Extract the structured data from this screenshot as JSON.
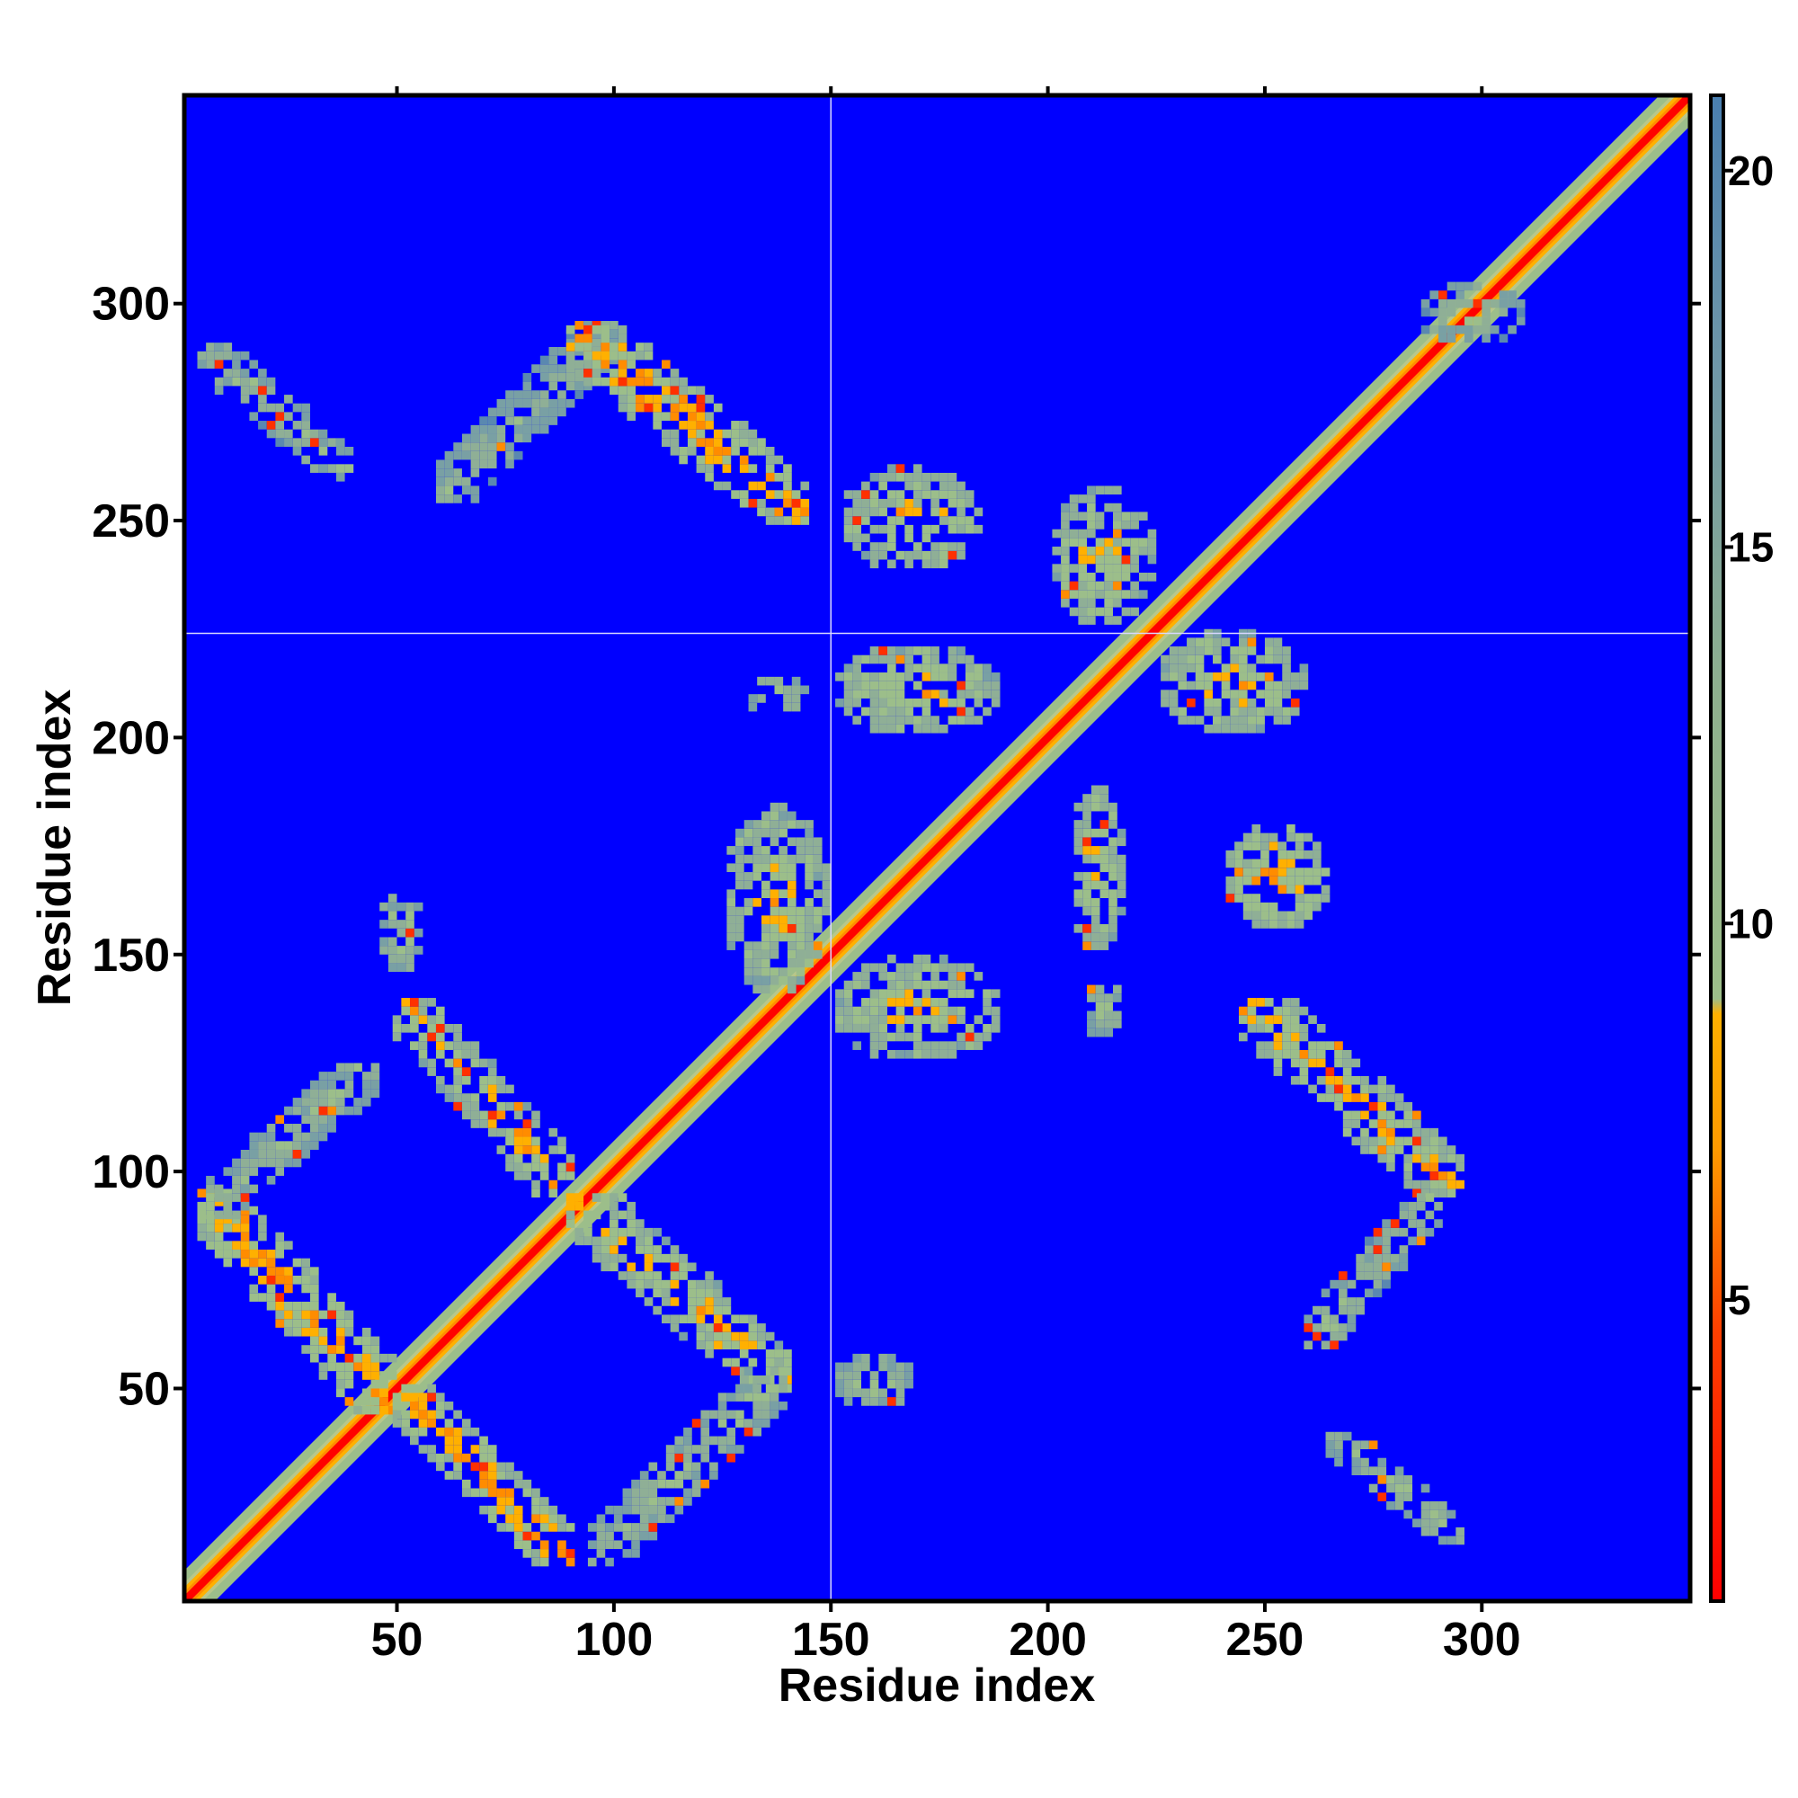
{
  "chart_data": {
    "type": "heatmap",
    "title": "",
    "xlabel": "Residue index",
    "ylabel": "Residue index",
    "xlim": [
      1,
      348
    ],
    "ylim": [
      1,
      348
    ],
    "xticks": [
      50,
      100,
      150,
      200,
      250,
      300
    ],
    "yticks": [
      50,
      100,
      150,
      200,
      250,
      300
    ],
    "colorbar": {
      "range": [
        1,
        21
      ],
      "ticks": [
        5,
        10,
        15,
        20
      ],
      "colors": {
        "near": "#ff0000",
        "mid_low": "#ff8c00",
        "mid": "#9cbe8a",
        "far": "#0000ff",
        "top": "#4a7fb0"
      }
    },
    "guide_lines": {
      "x": 150,
      "y": 224
    },
    "diagonal": {
      "from": [
        1,
        1
      ],
      "to": [
        348,
        348
      ]
    },
    "contact_regions": [
      {
        "x": [
          5,
          50
        ],
        "y": [
          45,
          95
        ],
        "orientation": "anti",
        "value": 7
      },
      {
        "x": [
          50,
          90
        ],
        "y": [
          10,
          50
        ],
        "orientation": "anti",
        "value": 7
      },
      {
        "x": [
          50,
          90
        ],
        "y": [
          95,
          140
        ],
        "orientation": "anti",
        "value": 8
      },
      {
        "x": [
          90,
          140
        ],
        "y": [
          50,
          95
        ],
        "orientation": "anti",
        "value": 8
      },
      {
        "x": [
          5,
          45
        ],
        "y": [
          90,
          125
        ],
        "orientation": "parallel",
        "value": 11
      },
      {
        "x": [
          95,
          140
        ],
        "y": [
          10,
          55
        ],
        "orientation": "parallel",
        "value": 11
      },
      {
        "x": [
          45,
          57
        ],
        "y": [
          145,
          165
        ],
        "orientation": "blob",
        "value": 10
      },
      {
        "x": [
          150,
          170
        ],
        "y": [
          45,
          58
        ],
        "orientation": "blob",
        "value": 10
      },
      {
        "x": [
          5,
          40
        ],
        "y": [
          260,
          290
        ],
        "orientation": "anti",
        "value": 11
      },
      {
        "x": [
          60,
          100
        ],
        "y": [
          255,
          295
        ],
        "orientation": "parallel",
        "value": 12
      },
      {
        "x": [
          90,
          145
        ],
        "y": [
          250,
          295
        ],
        "orientation": "anti",
        "value": 7
      },
      {
        "x": [
          152,
          185
        ],
        "y": [
          238,
          263
        ],
        "orientation": "blob",
        "value": 8
      },
      {
        "x": [
          150,
          190
        ],
        "y": [
          200,
          222
        ],
        "orientation": "blob",
        "value": 8
      },
      {
        "x": [
          130,
          145
        ],
        "y": [
          205,
          215
        ],
        "orientation": "blob",
        "value": 10
      },
      {
        "x": [
          125,
          150
        ],
        "y": [
          140,
          185
        ],
        "orientation": "blob",
        "value": 8
      },
      {
        "x": [
          150,
          190
        ],
        "y": [
          125,
          150
        ],
        "orientation": "blob",
        "value": 8
      },
      {
        "x": [
          200,
          225
        ],
        "y": [
          225,
          258
        ],
        "orientation": "blob",
        "value": 8
      },
      {
        "x": [
          225,
          260
        ],
        "y": [
          200,
          225
        ],
        "orientation": "blob",
        "value": 8
      },
      {
        "x": [
          205,
          218
        ],
        "y": [
          150,
          190
        ],
        "orientation": "blob",
        "value": 8
      },
      {
        "x": [
          208,
          218
        ],
        "y": [
          130,
          145
        ],
        "orientation": "blob",
        "value": 10
      },
      {
        "x": [
          240,
          265
        ],
        "y": [
          155,
          180
        ],
        "orientation": "blob",
        "value": 7
      },
      {
        "x": [
          245,
          295
        ],
        "y": [
          95,
          140
        ],
        "orientation": "anti",
        "value": 8
      },
      {
        "x": [
          260,
          290
        ],
        "y": [
          60,
          95
        ],
        "orientation": "parallel",
        "value": 11
      },
      {
        "x": [
          265,
          295
        ],
        "y": [
          15,
          40
        ],
        "orientation": "anti",
        "value": 11
      },
      {
        "x": [
          285,
          310
        ],
        "y": [
          290,
          305
        ],
        "orientation": "blob",
        "value": 11
      }
    ]
  }
}
